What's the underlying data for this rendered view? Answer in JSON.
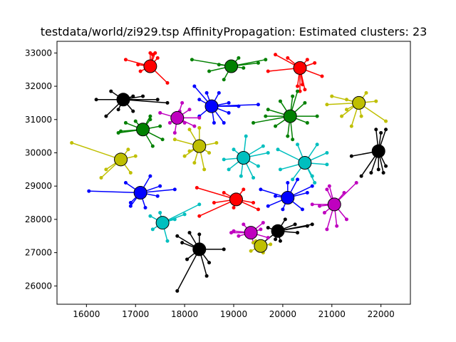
{
  "chart_data": {
    "type": "scatter",
    "title": "testdata/world/zi929.tsp AffinityPropagation: Estimated clusters: 23",
    "xlabel": "",
    "ylabel": "",
    "xlim": [
      15400,
      22600
    ],
    "ylim": [
      25450,
      33350
    ],
    "x_ticks": [
      16000,
      17000,
      18000,
      19000,
      20000,
      21000,
      22000
    ],
    "y_ticks": [
      26000,
      27000,
      28000,
      29000,
      30000,
      31000,
      32000,
      33000
    ],
    "grid": false,
    "legend": "none",
    "colors": {
      "red": "#ff0000",
      "green": "#008000",
      "blue": "#0000ff",
      "cyan": "#00bfbf",
      "magenta": "#bf00bf",
      "yellow": "#bfbf00",
      "black": "#000000"
    },
    "clusters": [
      {
        "color": "red",
        "center": [
          17300,
          32600
        ],
        "points": [
          [
            16800,
            32800
          ],
          [
            17300,
            33000
          ],
          [
            17350,
            32950
          ],
          [
            17400,
            33000
          ],
          [
            17450,
            32850
          ],
          [
            17650,
            32100
          ],
          [
            17100,
            32450
          ],
          [
            17050,
            32650
          ]
        ]
      },
      {
        "color": "green",
        "center": [
          18950,
          32600
        ],
        "points": [
          [
            18150,
            32800
          ],
          [
            18500,
            32450
          ],
          [
            18800,
            32200
          ],
          [
            19100,
            32850
          ],
          [
            19500,
            32700
          ],
          [
            19650,
            32800
          ],
          [
            19200,
            32550
          ],
          [
            18700,
            32650
          ]
        ]
      },
      {
        "color": "red",
        "center": [
          20350,
          32550
        ],
        "points": [
          [
            19850,
            32950
          ],
          [
            19700,
            32450
          ],
          [
            20100,
            32850
          ],
          [
            20500,
            32800
          ],
          [
            20800,
            32300
          ],
          [
            20650,
            32700
          ],
          [
            20400,
            32050
          ],
          [
            20450,
            31900
          ],
          [
            20350,
            31850
          ],
          [
            20300,
            32000
          ]
        ]
      },
      {
        "color": "black",
        "center": [
          16750,
          31600
        ],
        "points": [
          [
            16200,
            31600
          ],
          [
            16500,
            31850
          ],
          [
            16400,
            31100
          ],
          [
            16650,
            31300
          ],
          [
            16950,
            31700
          ],
          [
            16950,
            31250
          ],
          [
            17150,
            31700
          ],
          [
            17450,
            31600
          ],
          [
            17650,
            31500
          ]
        ]
      },
      {
        "color": "blue",
        "center": [
          18550,
          31400
        ],
        "points": [
          [
            18200,
            32000
          ],
          [
            18300,
            31600
          ],
          [
            18700,
            31800
          ],
          [
            18600,
            30900
          ],
          [
            18900,
            31500
          ],
          [
            19100,
            31400
          ],
          [
            19500,
            31450
          ],
          [
            18900,
            31200
          ],
          [
            18300,
            31100
          ],
          [
            18800,
            30900
          ],
          [
            18450,
            31800
          ]
        ]
      },
      {
        "color": "magenta",
        "center": [
          17850,
          31050
        ],
        "points": [
          [
            17500,
            31200
          ],
          [
            17700,
            30900
          ],
          [
            17900,
            31250
          ],
          [
            18000,
            30900
          ],
          [
            18300,
            31050
          ],
          [
            17800,
            30600
          ],
          [
            18200,
            30800
          ],
          [
            18100,
            31300
          ],
          [
            17950,
            31500
          ]
        ]
      },
      {
        "color": "green",
        "center": [
          20150,
          31100
        ],
        "points": [
          [
            19650,
            31100
          ],
          [
            19400,
            30900
          ],
          [
            19850,
            30800
          ],
          [
            20100,
            30500
          ],
          [
            20200,
            30400
          ],
          [
            20500,
            30900
          ],
          [
            20700,
            31100
          ],
          [
            20450,
            31500
          ],
          [
            20300,
            31850
          ],
          [
            19950,
            31550
          ],
          [
            20200,
            31700
          ],
          [
            19700,
            31300
          ]
        ]
      },
      {
        "color": "yellow",
        "center": [
          21550,
          31500
        ],
        "points": [
          [
            21000,
            31700
          ],
          [
            21300,
            31300
          ],
          [
            21200,
            31100
          ],
          [
            21400,
            30800
          ],
          [
            21600,
            31100
          ],
          [
            21900,
            31550
          ],
          [
            22100,
            30950
          ],
          [
            21300,
            31600
          ],
          [
            20900,
            31450
          ],
          [
            21700,
            31800
          ]
        ]
      },
      {
        "color": "green",
        "center": [
          17150,
          30700
        ],
        "points": [
          [
            16650,
            30600
          ],
          [
            16800,
            30900
          ],
          [
            17000,
            30950
          ],
          [
            17300,
            31000
          ],
          [
            17500,
            30800
          ],
          [
            17350,
            30200
          ],
          [
            17550,
            30400
          ],
          [
            17300,
            31100
          ],
          [
            16700,
            30650
          ]
        ]
      },
      {
        "color": "yellow",
        "center": [
          18300,
          30200
        ],
        "points": [
          [
            17800,
            30400
          ],
          [
            18000,
            29900
          ],
          [
            18100,
            30700
          ],
          [
            18300,
            30750
          ],
          [
            18500,
            30000
          ],
          [
            18200,
            29700
          ],
          [
            18650,
            30300
          ],
          [
            18400,
            29500
          ],
          [
            18100,
            30050
          ]
        ]
      },
      {
        "color": "black",
        "center": [
          21950,
          30050
        ],
        "points": [
          [
            21400,
            29900
          ],
          [
            21600,
            29300
          ],
          [
            21800,
            29400
          ],
          [
            22000,
            30600
          ],
          [
            22100,
            30700
          ],
          [
            21950,
            29500
          ],
          [
            22100,
            29600
          ],
          [
            22050,
            29400
          ],
          [
            21900,
            30700
          ]
        ]
      },
      {
        "color": "yellow",
        "center": [
          16700,
          29800
        ],
        "points": [
          [
            15700,
            30300
          ],
          [
            16400,
            29500
          ],
          [
            16300,
            29250
          ],
          [
            16900,
            29400
          ],
          [
            17000,
            29900
          ],
          [
            16850,
            30100
          ]
        ]
      },
      {
        "color": "cyan",
        "center": [
          19200,
          29850
        ],
        "points": [
          [
            18800,
            29800
          ],
          [
            19000,
            30100
          ],
          [
            19250,
            30500
          ],
          [
            19150,
            29300
          ],
          [
            19500,
            29600
          ],
          [
            19700,
            30000
          ],
          [
            19400,
            29250
          ],
          [
            18900,
            29500
          ],
          [
            19600,
            30200
          ]
        ]
      },
      {
        "color": "cyan",
        "center": [
          20450,
          29700
        ],
        "points": [
          [
            19900,
            30100
          ],
          [
            19950,
            29500
          ],
          [
            20200,
            29200
          ],
          [
            20600,
            29300
          ],
          [
            20900,
            29650
          ],
          [
            20900,
            30000
          ],
          [
            20700,
            30250
          ],
          [
            20300,
            30250
          ],
          [
            20650,
            29100
          ]
        ]
      },
      {
        "color": "blue",
        "center": [
          17100,
          28800
        ],
        "points": [
          [
            16050,
            28850
          ],
          [
            16800,
            29100
          ],
          [
            16900,
            28500
          ],
          [
            16900,
            28400
          ],
          [
            17200,
            28350
          ],
          [
            17500,
            29000
          ],
          [
            17800,
            28900
          ],
          [
            17450,
            28700
          ],
          [
            17300,
            29300
          ]
        ]
      },
      {
        "color": "red",
        "center": [
          19050,
          28600
        ],
        "points": [
          [
            18250,
            28950
          ],
          [
            18600,
            28500
          ],
          [
            18800,
            28800
          ],
          [
            19400,
            28500
          ],
          [
            19500,
            28300
          ],
          [
            19200,
            28900
          ],
          [
            18300,
            28100
          ],
          [
            19000,
            28350
          ]
        ]
      },
      {
        "color": "blue",
        "center": [
          20100,
          28650
        ],
        "points": [
          [
            19550,
            28900
          ],
          [
            19700,
            28400
          ],
          [
            19850,
            28700
          ],
          [
            20300,
            29200
          ],
          [
            20500,
            28800
          ],
          [
            20600,
            29000
          ],
          [
            20400,
            28300
          ],
          [
            20000,
            28300
          ],
          [
            20100,
            29100
          ]
        ]
      },
      {
        "color": "magenta",
        "center": [
          21050,
          28450
        ],
        "points": [
          [
            20600,
            28450
          ],
          [
            20750,
            28400
          ],
          [
            20900,
            28900
          ],
          [
            20950,
            29000
          ],
          [
            21250,
            28800
          ],
          [
            21500,
            29100
          ],
          [
            21100,
            27800
          ],
          [
            20900,
            27700
          ],
          [
            21300,
            28000
          ],
          [
            20850,
            28200
          ]
        ]
      },
      {
        "color": "cyan",
        "center": [
          17550,
          27900
        ],
        "points": [
          [
            17300,
            28100
          ],
          [
            17350,
            27700
          ],
          [
            17650,
            27350
          ],
          [
            17800,
            28000
          ],
          [
            18000,
            28150
          ],
          [
            18300,
            28450
          ],
          [
            17500,
            28200
          ]
        ]
      },
      {
        "color": "magenta",
        "center": [
          19350,
          27600
        ],
        "points": [
          [
            18950,
            27600
          ],
          [
            19100,
            27500
          ],
          [
            19200,
            27850
          ],
          [
            19400,
            27300
          ],
          [
            19550,
            27700
          ],
          [
            19600,
            27900
          ],
          [
            19700,
            27450
          ],
          [
            19000,
            27650
          ]
        ]
      },
      {
        "color": "black",
        "center": [
          19900,
          27650
        ],
        "points": [
          [
            19600,
            27300
          ],
          [
            19700,
            27750
          ],
          [
            19850,
            27400
          ],
          [
            20050,
            28000
          ],
          [
            20250,
            27850
          ],
          [
            20500,
            27800
          ],
          [
            20600,
            27850
          ],
          [
            20300,
            27600
          ],
          [
            19950,
            27350
          ]
        ]
      },
      {
        "color": "yellow",
        "center": [
          19550,
          27200
        ],
        "points": [
          [
            19350,
            27050
          ],
          [
            19450,
            27350
          ],
          [
            19600,
            27000
          ],
          [
            19750,
            27250
          ],
          [
            19400,
            27300
          ]
        ]
      },
      {
        "color": "black",
        "center": [
          18300,
          27100
        ],
        "points": [
          [
            17850,
            27500
          ],
          [
            17950,
            27300
          ],
          [
            17850,
            25850
          ],
          [
            18100,
            27600
          ],
          [
            18300,
            27550
          ],
          [
            18500,
            26700
          ],
          [
            18450,
            26300
          ],
          [
            18800,
            27100
          ],
          [
            18050,
            26800
          ]
        ]
      }
    ]
  }
}
